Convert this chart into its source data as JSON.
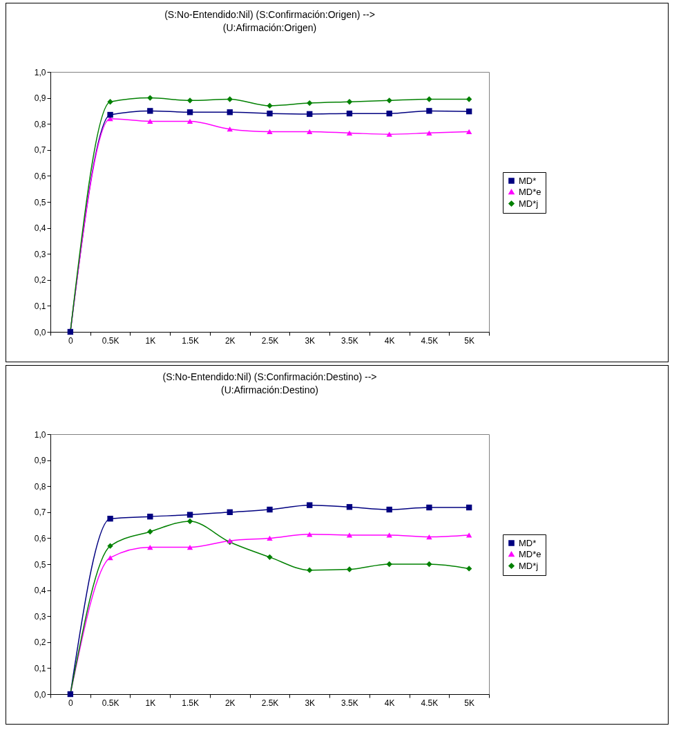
{
  "chart_data": [
    {
      "type": "line",
      "title": "(S:No-Entendido:Nil) (S:Confirmación:Origen) -->\n(U:Afirmación:Origen)",
      "categories": [
        "0",
        "0.5K",
        "1K",
        "1.5K",
        "2K",
        "2.5K",
        "3K",
        "3.5K",
        "4K",
        "4.5K",
        "5K"
      ],
      "ylim": [
        0,
        1
      ],
      "yticks": [
        {
          "value": 0,
          "label": "0,0"
        },
        {
          "value": 0.1,
          "label": "0,1"
        },
        {
          "value": 0.2,
          "label": "0,2"
        },
        {
          "value": 0.3,
          "label": "0,3"
        },
        {
          "value": 0.4,
          "label": "0,4"
        },
        {
          "value": 0.5,
          "label": "0,5"
        },
        {
          "value": 0.6,
          "label": "0,6"
        },
        {
          "value": 0.7,
          "label": "0,7"
        },
        {
          "value": 0.8,
          "label": "0,8"
        },
        {
          "value": 0.9,
          "label": "0,9"
        },
        {
          "value": 1,
          "label": "1,0"
        }
      ],
      "grid": false,
      "legend": "right",
      "series": [
        {
          "name": "MD*",
          "color": "#000080",
          "marker": "square",
          "values": [
            0,
            0.835,
            0.85,
            0.845,
            0.845,
            0.84,
            0.838,
            0.84,
            0.84,
            0.85,
            0.848
          ]
        },
        {
          "name": "MD*e",
          "color": "#ff00ff",
          "marker": "triangle",
          "values": [
            0,
            0.82,
            0.81,
            0.81,
            0.78,
            0.77,
            0.77,
            0.765,
            0.76,
            0.765,
            0.77
          ]
        },
        {
          "name": "MD*j",
          "color": "#008000",
          "marker": "diamond",
          "values": [
            0,
            0.885,
            0.9,
            0.89,
            0.895,
            0.87,
            0.88,
            0.885,
            0.89,
            0.895,
            0.895
          ]
        }
      ]
    },
    {
      "type": "line",
      "title": "(S:No-Entendido:Nil) (S:Confirmación:Destino) -->\n(U:Afirmación:Destino)",
      "categories": [
        "0",
        "0.5K",
        "1K",
        "1.5K",
        "2K",
        "2.5K",
        "3K",
        "3.5K",
        "4K",
        "4.5K",
        "5K"
      ],
      "ylim": [
        0,
        1
      ],
      "yticks": [
        {
          "value": 0,
          "label": "0,0"
        },
        {
          "value": 0.1,
          "label": "0,1"
        },
        {
          "value": 0.2,
          "label": "0,2"
        },
        {
          "value": 0.3,
          "label": "0,3"
        },
        {
          "value": 0.4,
          "label": "0,4"
        },
        {
          "value": 0.5,
          "label": "0,5"
        },
        {
          "value": 0.6,
          "label": "0,6"
        },
        {
          "value": 0.7,
          "label": "0,7"
        },
        {
          "value": 0.8,
          "label": "0,8"
        },
        {
          "value": 0.9,
          "label": "0,9"
        },
        {
          "value": 1,
          "label": "1,0"
        }
      ],
      "grid": false,
      "legend": "right",
      "series": [
        {
          "name": "MD*",
          "color": "#000080",
          "marker": "square",
          "values": [
            0,
            0.675,
            0.683,
            0.69,
            0.7,
            0.71,
            0.727,
            0.72,
            0.71,
            0.718,
            0.718
          ]
        },
        {
          "name": "MD*e",
          "color": "#ff00ff",
          "marker": "triangle",
          "values": [
            0,
            0.525,
            0.565,
            0.565,
            0.59,
            0.6,
            0.615,
            0.612,
            0.612,
            0.605,
            0.612
          ]
        },
        {
          "name": "MD*j",
          "color": "#008000",
          "marker": "diamond",
          "values": [
            0,
            0.57,
            0.625,
            0.665,
            0.585,
            0.527,
            0.477,
            0.48,
            0.5,
            0.5,
            0.483
          ]
        }
      ]
    }
  ]
}
